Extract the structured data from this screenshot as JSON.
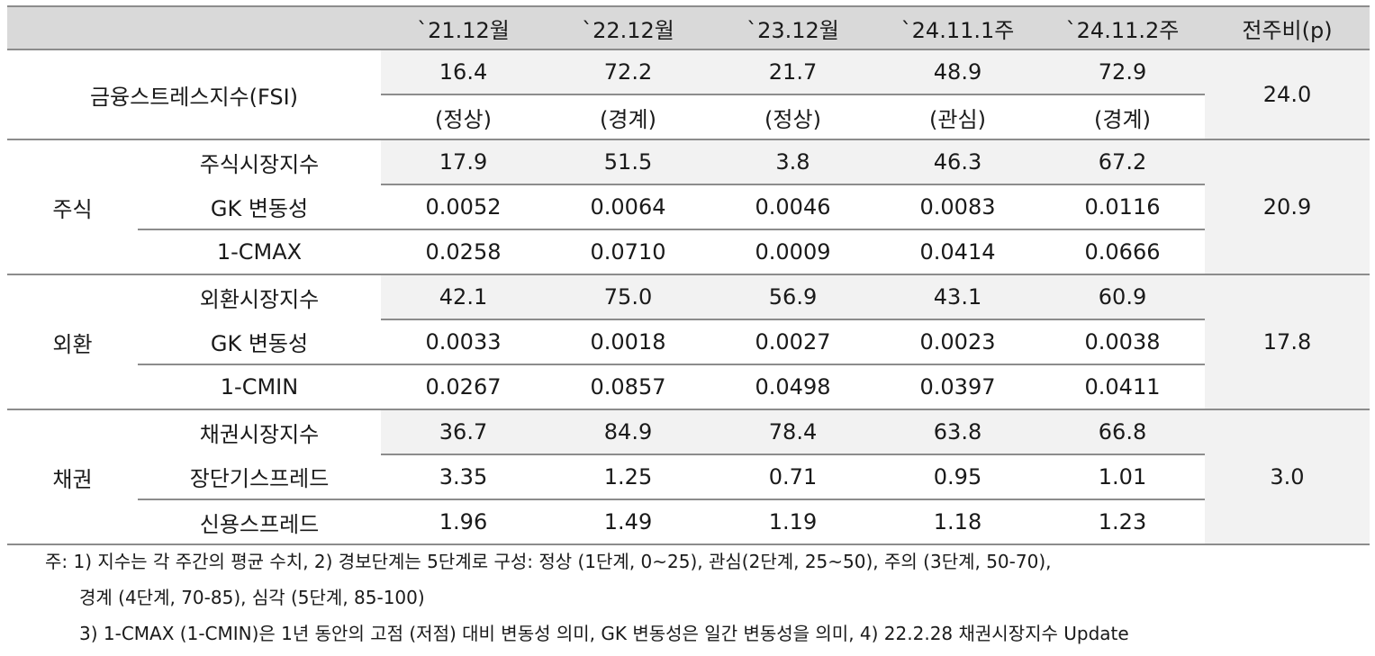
{
  "header": {
    "blank": "",
    "cols": [
      "`21.12월",
      "`22.12월",
      "`23.12월",
      "`24.11.1주",
      "`24.11.2주"
    ],
    "change": "전주비(p)"
  },
  "fsi": {
    "label": "금융스트레스지수(FSI)",
    "values": [
      "16.4",
      "72.2",
      "21.7",
      "48.9",
      "72.9"
    ],
    "levels": [
      "(정상)",
      "(경계)",
      "(정상)",
      "(관심)",
      "(경계)"
    ],
    "change": "24.0"
  },
  "groups": [
    {
      "name": "주식",
      "change": "20.9",
      "rows": [
        {
          "label": "주식시장지수",
          "values": [
            "17.9",
            "51.5",
            "3.8",
            "46.3",
            "67.2"
          ]
        },
        {
          "label": "GK 변동성",
          "values": [
            "0.0052",
            "0.0064",
            "0.0046",
            "0.0083",
            "0.0116"
          ]
        },
        {
          "label": "1-CMAX",
          "values": [
            "0.0258",
            "0.0710",
            "0.0009",
            "0.0414",
            "0.0666"
          ]
        }
      ]
    },
    {
      "name": "외환",
      "change": "17.8",
      "rows": [
        {
          "label": "외환시장지수",
          "values": [
            "42.1",
            "75.0",
            "56.9",
            "43.1",
            "60.9"
          ]
        },
        {
          "label": "GK 변동성",
          "values": [
            "0.0033",
            "0.0018",
            "0.0027",
            "0.0023",
            "0.0038"
          ]
        },
        {
          "label": "1-CMIN",
          "values": [
            "0.0267",
            "0.0857",
            "0.0498",
            "0.0397",
            "0.0411"
          ]
        }
      ]
    },
    {
      "name": "채권",
      "change": "3.0",
      "rows": [
        {
          "label": "채권시장지수",
          "values": [
            "36.7",
            "84.9",
            "78.4",
            "63.8",
            "66.8"
          ]
        },
        {
          "label": "장단기스프레드",
          "values": [
            "3.35",
            "1.25",
            "0.71",
            "0.95",
            "1.01"
          ]
        },
        {
          "label": "신용스프레드",
          "values": [
            "1.96",
            "1.49",
            "1.19",
            "1.18",
            "1.23"
          ]
        }
      ]
    }
  ],
  "notes": [
    "주: 1) 지수는 각 주간의 평균 수치, 2) 경보단계는 5단계로 구성: 정상 (1단계, 0~25), 관심(2단계, 25~50), 주의 (3단계, 50-70),",
    "경계 (4단계, 70-85), 심각 (5단계, 85-100)",
    "3) 1-CMAX (1-CMIN)은 1년 동안의 고점 (저점) 대비 변동성 의미, GK 변동성은 일간 변동성을 의미, 4) 22.2.28 채권시장지수 Update"
  ]
}
